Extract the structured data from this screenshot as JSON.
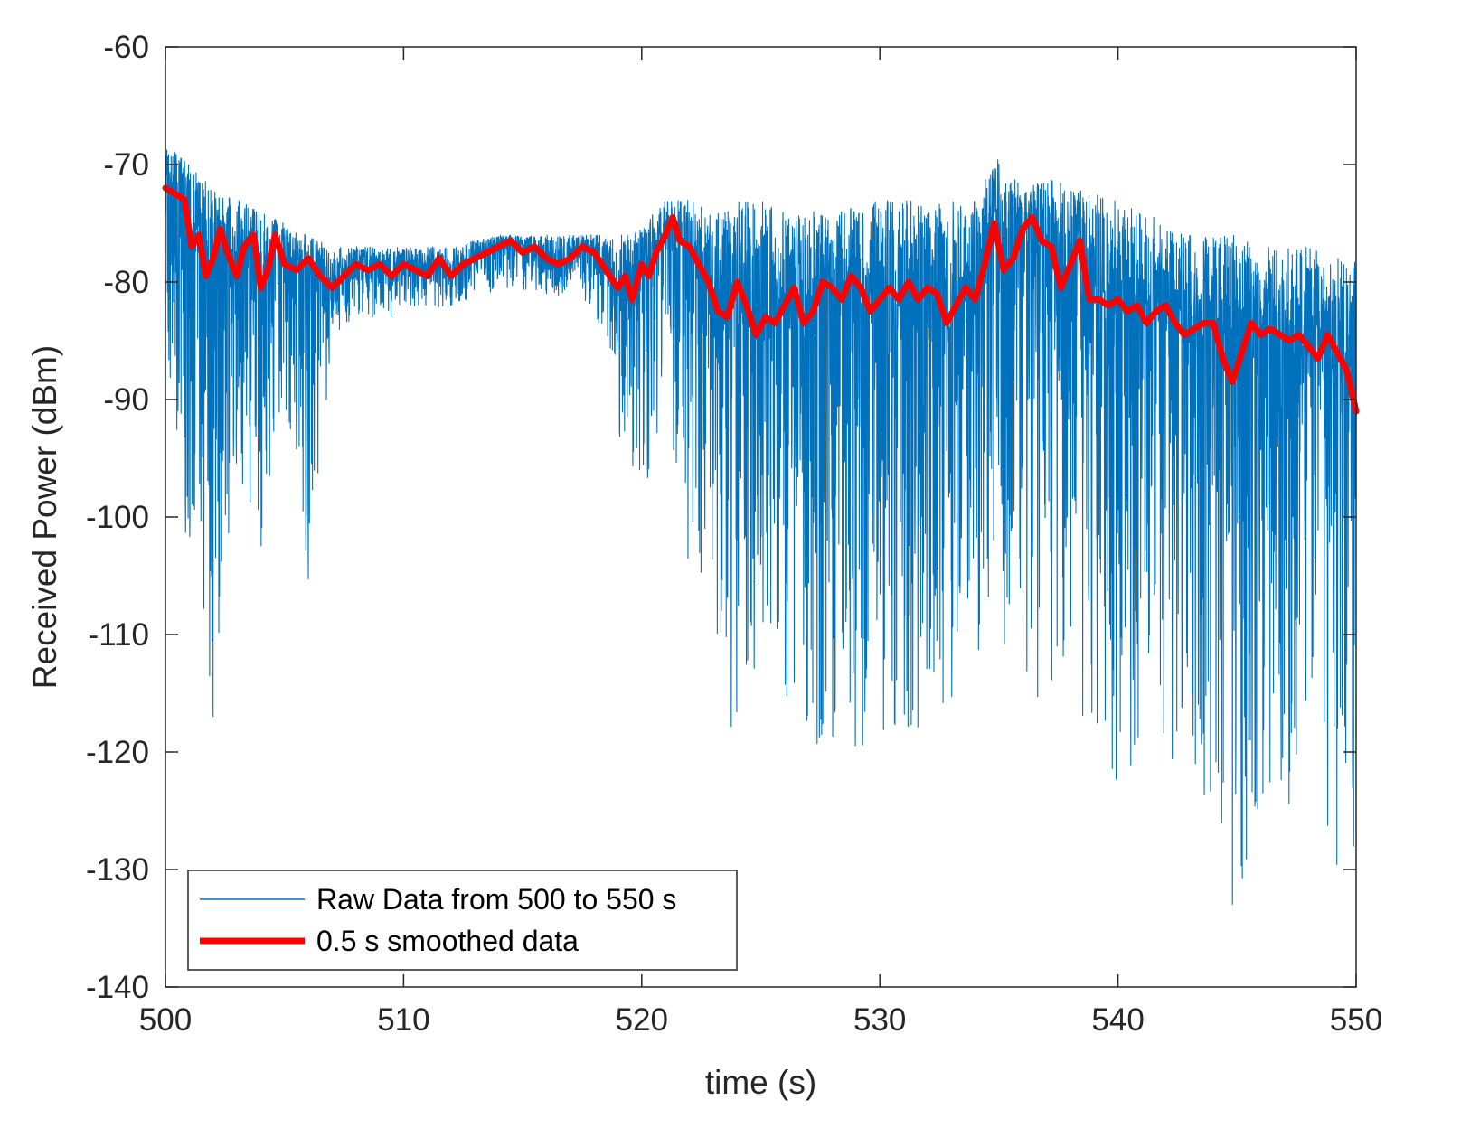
{
  "chart_data": {
    "type": "line",
    "xlabel": "time (s)",
    "ylabel": "Received Power (dBm)",
    "xlim": [
      500,
      550
    ],
    "ylim": [
      -140,
      -60
    ],
    "xticks": [
      500,
      510,
      520,
      530,
      540,
      550
    ],
    "yticks": [
      -60,
      -70,
      -80,
      -90,
      -100,
      -110,
      -120,
      -130,
      -140
    ],
    "xtick_labels": [
      "500",
      "510",
      "520",
      "530",
      "540",
      "550"
    ],
    "ytick_labels": [
      "-60",
      "-70",
      "-80",
      "-90",
      "-100",
      "-110",
      "-120",
      "-130",
      "-140"
    ],
    "grid": false,
    "legend_position": "bottom-left",
    "colors": {
      "raw": "#0072BD",
      "smoothed": "#FF0000",
      "axis": "#262626"
    },
    "series": [
      {
        "name": "Raw Data from 500 to 550 s",
        "style": "thin",
        "description_envelope": {
          "x": [
            500,
            501,
            502,
            503,
            504,
            505,
            506,
            507,
            508,
            510,
            512,
            514,
            516,
            518,
            519,
            520,
            521,
            522,
            523,
            524,
            525,
            526,
            528,
            530,
            532,
            534,
            535,
            536,
            537,
            538,
            540,
            542,
            544,
            545,
            546,
            548,
            549,
            550
          ],
          "upper": [
            -68,
            -70,
            -72,
            -73,
            -74,
            -75,
            -76,
            -77,
            -77,
            -77,
            -77,
            -76,
            -76,
            -76,
            -76,
            -75,
            -73,
            -73,
            -74,
            -73,
            -73,
            -74,
            -74,
            -73,
            -73,
            -73,
            -69,
            -72,
            -71,
            -72,
            -73,
            -75,
            -76,
            -76,
            -77,
            -77,
            -78,
            -78
          ],
          "lower": [
            -85,
            -105,
            -117,
            -96,
            -103,
            -90,
            -106,
            -85,
            -83,
            -83,
            -82,
            -81,
            -81,
            -82,
            -93,
            -100,
            -89,
            -105,
            -108,
            -121,
            -110,
            -115,
            -122,
            -118,
            -120,
            -112,
            -110,
            -118,
            -115,
            -118,
            -123,
            -120,
            -125,
            -136,
            -128,
            -122,
            -130,
            -131
          ]
        }
      },
      {
        "name": "0.5 s smoothed data",
        "style": "thick",
        "x": [
          500.0,
          500.4,
          500.8,
          501.1,
          501.4,
          501.7,
          502.0,
          502.3,
          502.6,
          503.0,
          503.3,
          503.7,
          504.0,
          504.3,
          504.6,
          505.0,
          505.5,
          506.0,
          506.5,
          507.0,
          507.5,
          508.0,
          508.5,
          509.0,
          509.5,
          510.0,
          510.5,
          511.0,
          511.5,
          512.0,
          512.5,
          513.0,
          513.5,
          514.0,
          514.5,
          515.0,
          515.5,
          516.0,
          516.5,
          517.0,
          517.5,
          518.0,
          518.5,
          519.0,
          519.3,
          519.6,
          520.0,
          520.3,
          520.6,
          521.0,
          521.3,
          521.6,
          522.0,
          522.4,
          522.8,
          523.2,
          523.6,
          524.0,
          524.4,
          524.8,
          525.2,
          525.6,
          526.0,
          526.4,
          526.8,
          527.2,
          527.6,
          528.0,
          528.4,
          528.8,
          529.2,
          529.6,
          530.0,
          530.4,
          530.8,
          531.2,
          531.6,
          532.0,
          532.4,
          532.8,
          533.2,
          533.6,
          534.0,
          534.4,
          534.8,
          535.2,
          535.6,
          536.0,
          536.4,
          536.8,
          537.2,
          537.6,
          538.0,
          538.4,
          538.8,
          539.2,
          539.6,
          540.0,
          540.4,
          540.8,
          541.2,
          541.6,
          542.0,
          542.4,
          542.8,
          543.2,
          543.6,
          544.0,
          544.4,
          544.8,
          545.2,
          545.6,
          546.0,
          546.4,
          546.8,
          547.2,
          547.6,
          548.0,
          548.4,
          548.8,
          549.2,
          549.6,
          550.0
        ],
        "y": [
          -72,
          -72.5,
          -73,
          -77,
          -76,
          -79.5,
          -78,
          -75.5,
          -77.5,
          -79.5,
          -77,
          -76,
          -80.5,
          -79,
          -76,
          -78.5,
          -79,
          -78,
          -79.5,
          -80.5,
          -79.5,
          -78.5,
          -79,
          -78.5,
          -79.5,
          -78.5,
          -79,
          -79.5,
          -78,
          -79.5,
          -78.5,
          -78,
          -77.5,
          -77,
          -76.5,
          -77.5,
          -77,
          -78,
          -78.5,
          -78,
          -77,
          -77.5,
          -79,
          -80.5,
          -79.5,
          -81.5,
          -78.5,
          -79.5,
          -77.5,
          -76,
          -74.5,
          -76.5,
          -77,
          -78.5,
          -80,
          -82.5,
          -83,
          -80,
          -82,
          -84.5,
          -83,
          -83.5,
          -82,
          -80.5,
          -83.5,
          -82.5,
          -80,
          -80.5,
          -81.5,
          -79.5,
          -80.5,
          -82.5,
          -81.5,
          -80.5,
          -81.5,
          -80,
          -81.5,
          -80.5,
          -81,
          -83.5,
          -82,
          -80.5,
          -81.5,
          -78.5,
          -75,
          -79,
          -78,
          -75.5,
          -74.5,
          -76.5,
          -77,
          -80.5,
          -78.5,
          -76.5,
          -81.5,
          -81.5,
          -82,
          -81.5,
          -82.5,
          -82,
          -83.5,
          -82.5,
          -82,
          -83.5,
          -84.5,
          -84,
          -83.5,
          -83.5,
          -86.5,
          -88.5,
          -86,
          -83.5,
          -84.5,
          -84,
          -84.5,
          -85,
          -84.5,
          -85.5,
          -86.5,
          -84.5,
          -86,
          -87.5,
          -91
        ]
      }
    ]
  }
}
